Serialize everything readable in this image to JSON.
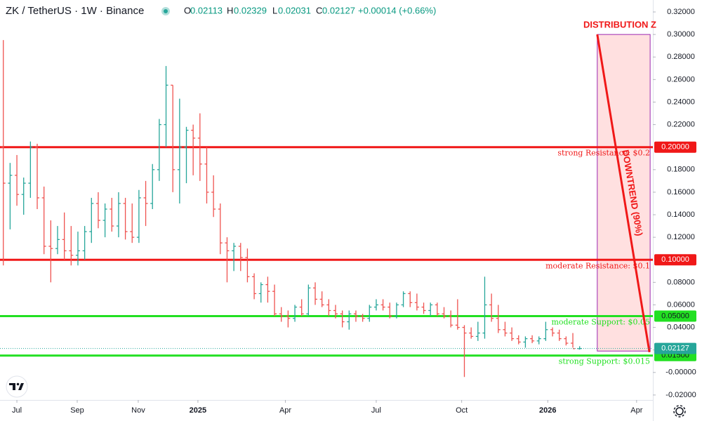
{
  "chart_data": {
    "type": "ohlc",
    "header": {
      "symbol": "ZK / TetherUS · 1W · Binance",
      "ohlc": [
        {
          "label": "O",
          "value": 0.02113
        },
        {
          "label": "H",
          "value": 0.02329
        },
        {
          "label": "L",
          "value": 0.02031
        },
        {
          "label": "C",
          "value": 0.02127
        }
      ],
      "change": "+0.00014 (+0.66%)"
    },
    "up_color": "#26a69a",
    "down_color": "#ef5350",
    "x": [
      0,
      1,
      2,
      3,
      4,
      5,
      6,
      7,
      8,
      9,
      10,
      11,
      12,
      13,
      14,
      15,
      16,
      17,
      18,
      19,
      20,
      21,
      22,
      23,
      24,
      25,
      26,
      27,
      28,
      29,
      30,
      31,
      32,
      33,
      34,
      35,
      36,
      37,
      38,
      39,
      40,
      41,
      42,
      43,
      44,
      45,
      46,
      47,
      48,
      49,
      50,
      51,
      52,
      53,
      54,
      55,
      56,
      57,
      58,
      59,
      60,
      61,
      62,
      63,
      64,
      65,
      66,
      67,
      68,
      69,
      70,
      71,
      72,
      73,
      74,
      75,
      76,
      77,
      78,
      79,
      80,
      81,
      82,
      83,
      84,
      85
    ],
    "open": [
      0.2,
      0.168,
      0.175,
      0.158,
      0.168,
      0.2,
      0.155,
      0.112,
      0.11,
      0.118,
      0.108,
      0.104,
      0.108,
      0.125,
      0.15,
      0.135,
      0.145,
      0.13,
      0.15,
      0.125,
      0.12,
      0.155,
      0.15,
      0.18,
      0.22,
      0.255,
      0.18,
      0.2,
      0.215,
      0.208,
      0.185,
      0.16,
      0.145,
      0.115,
      0.108,
      0.112,
      0.102,
      0.085,
      0.07,
      0.078,
      0.072,
      0.052,
      0.05,
      0.048,
      0.058,
      0.052,
      0.075,
      0.065,
      0.06,
      0.055,
      0.052,
      0.045,
      0.052,
      0.05,
      0.048,
      0.058,
      0.06,
      0.058,
      0.05,
      0.06,
      0.07,
      0.062,
      0.058,
      0.055,
      0.06,
      0.052,
      0.05,
      0.042,
      0.04,
      0.035,
      0.032,
      0.035,
      0.06,
      0.048,
      0.038,
      0.035,
      0.03,
      0.027,
      0.03,
      0.028,
      0.03,
      0.038,
      0.035,
      0.03,
      0.026,
      0.02113
    ],
    "high": [
      0.295,
      0.186,
      0.193,
      0.173,
      0.205,
      0.203,
      0.165,
      0.135,
      0.13,
      0.142,
      0.13,
      0.125,
      0.13,
      0.155,
      0.16,
      0.15,
      0.155,
      0.16,
      0.155,
      0.15,
      0.162,
      0.17,
      0.185,
      0.225,
      0.272,
      0.255,
      0.243,
      0.218,
      0.22,
      0.23,
      0.2,
      0.175,
      0.15,
      0.12,
      0.115,
      0.115,
      0.11,
      0.088,
      0.08,
      0.085,
      0.078,
      0.058,
      0.055,
      0.06,
      0.065,
      0.078,
      0.08,
      0.072,
      0.065,
      0.06,
      0.055,
      0.055,
      0.055,
      0.052,
      0.06,
      0.065,
      0.065,
      0.062,
      0.062,
      0.072,
      0.072,
      0.07,
      0.062,
      0.062,
      0.062,
      0.058,
      0.055,
      0.065,
      0.042,
      0.04,
      0.045,
      0.085,
      0.07,
      0.06,
      0.045,
      0.04,
      0.033,
      0.032,
      0.033,
      0.032,
      0.045,
      0.04,
      0.038,
      0.032,
      0.035,
      0.02329
    ],
    "low": [
      0.095,
      0.127,
      0.148,
      0.14,
      0.155,
      0.145,
      0.105,
      0.08,
      0.105,
      0.1,
      0.095,
      0.095,
      0.1,
      0.115,
      0.128,
      0.12,
      0.125,
      0.12,
      0.118,
      0.115,
      0.115,
      0.13,
      0.145,
      0.17,
      0.2,
      0.16,
      0.15,
      0.168,
      0.175,
      0.17,
      0.15,
      0.138,
      0.105,
      0.08,
      0.09,
      0.09,
      0.08,
      0.065,
      0.062,
      0.062,
      0.05,
      0.045,
      0.04,
      0.045,
      0.05,
      0.05,
      0.06,
      0.058,
      0.05,
      0.048,
      0.04,
      0.038,
      0.045,
      0.045,
      0.045,
      0.055,
      0.055,
      0.048,
      0.048,
      0.058,
      0.058,
      0.055,
      0.052,
      0.05,
      0.05,
      0.048,
      0.04,
      0.038,
      -0.004,
      0.03,
      0.028,
      0.03,
      0.045,
      0.035,
      0.032,
      0.028,
      0.025,
      0.022,
      0.026,
      0.025,
      0.028,
      0.032,
      0.028,
      0.024,
      0.022,
      0.02031
    ],
    "close": [
      0.168,
      0.175,
      0.158,
      0.168,
      0.2,
      0.155,
      0.112,
      0.11,
      0.118,
      0.108,
      0.104,
      0.108,
      0.125,
      0.15,
      0.135,
      0.145,
      0.13,
      0.15,
      0.125,
      0.12,
      0.155,
      0.15,
      0.18,
      0.22,
      0.255,
      0.18,
      0.2,
      0.215,
      0.208,
      0.185,
      0.16,
      0.145,
      0.115,
      0.108,
      0.112,
      0.102,
      0.085,
      0.07,
      0.078,
      0.072,
      0.052,
      0.05,
      0.048,
      0.058,
      0.052,
      0.075,
      0.065,
      0.06,
      0.055,
      0.052,
      0.045,
      0.052,
      0.05,
      0.048,
      0.058,
      0.06,
      0.058,
      0.05,
      0.06,
      0.07,
      0.062,
      0.058,
      0.055,
      0.06,
      0.052,
      0.05,
      0.042,
      0.04,
      0.035,
      0.032,
      0.035,
      0.06,
      0.048,
      0.038,
      0.035,
      0.03,
      0.027,
      0.03,
      0.028,
      0.03,
      0.038,
      0.035,
      0.03,
      0.026,
      0.02113,
      0.02127
    ],
    "xlim": [
      -0.49,
      95.8
    ],
    "xticks": [
      {
        "value": 2.0,
        "label": "Jul"
      },
      {
        "value": 10.9,
        "label": "Sep"
      },
      {
        "value": 19.9,
        "label": "Nov"
      },
      {
        "value": 28.7,
        "label": "2025"
      },
      {
        "value": 41.6,
        "label": "Apr"
      },
      {
        "value": 55.0,
        "label": "Jul"
      },
      {
        "value": 67.6,
        "label": "Oct"
      },
      {
        "value": 80.3,
        "label": "2026"
      },
      {
        "value": 93.4,
        "label": "Apr"
      }
    ],
    "ylim": [
      -0.0244,
      0.3306
    ],
    "yticks": [
      {
        "value": 0.32,
        "label": "0.32000"
      },
      {
        "value": 0.3,
        "label": "0.30000"
      },
      {
        "value": 0.28,
        "label": "0.28000"
      },
      {
        "value": 0.26,
        "label": "0.26000"
      },
      {
        "value": 0.24,
        "label": "0.24000"
      },
      {
        "value": 0.22,
        "label": "0.22000"
      },
      {
        "value": 0.18,
        "label": "0.18000"
      },
      {
        "value": 0.16,
        "label": "0.16000"
      },
      {
        "value": 0.14,
        "label": "0.14000"
      },
      {
        "value": 0.12,
        "label": "0.12000"
      },
      {
        "value": 0.08,
        "label": "0.08000"
      },
      {
        "value": 0.06,
        "label": "0.06000"
      },
      {
        "value": 0.04,
        "label": "0.04000"
      },
      {
        "value": 0.02,
        "label": "0.02000"
      },
      {
        "value": 0,
        "label": "-0.00000"
      },
      {
        "value": -0.02,
        "label": "-0.02000"
      }
    ],
    "levels": [
      {
        "value": 0.2,
        "label": "0.20000",
        "text": "strong Resistance: $0.2",
        "color": "#f01818"
      },
      {
        "value": 0.1,
        "label": "0.10000",
        "text": "moderate Resistance: $0.1",
        "color": "#f01818"
      },
      {
        "value": 0.05,
        "label": "0.05000",
        "text": "moderate Support: $0.05",
        "color": "#22e022"
      },
      {
        "value": 0.015,
        "label": "0.01500",
        "text": "strong Support: $0.015",
        "color": "#22e022"
      }
    ],
    "zone": {
      "label": "DISTRIBUTION Z",
      "x": [
        87.6,
        95.4
      ],
      "y": [
        0.3,
        0.019
      ]
    },
    "trend": {
      "label": "DOWNTREND (90%)",
      "from": [
        87.6,
        0.3
      ],
      "to": [
        95.3,
        0.018
      ]
    }
  }
}
